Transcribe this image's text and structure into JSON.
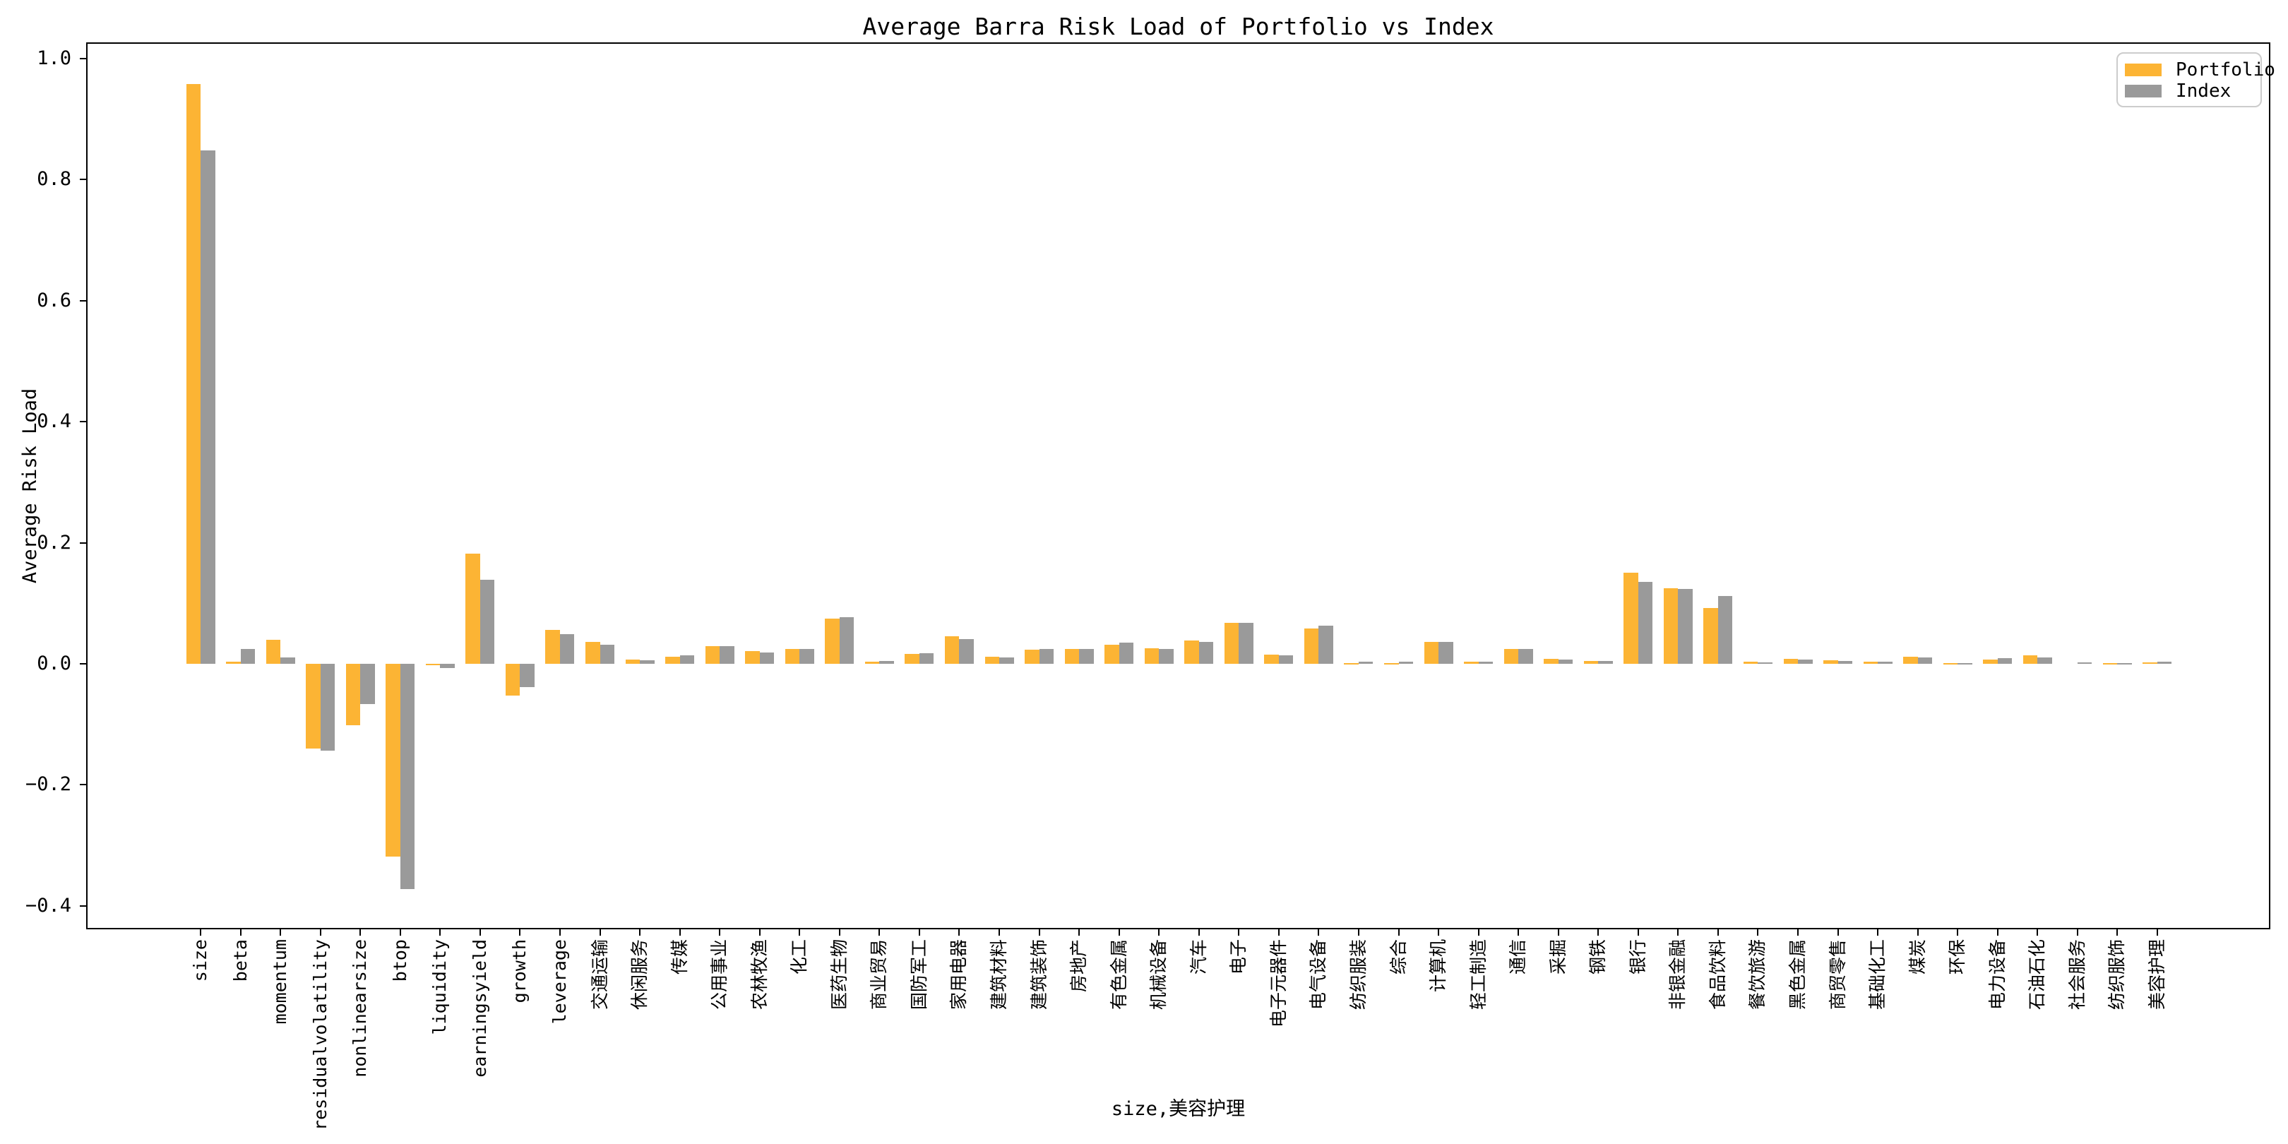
{
  "chart_data": {
    "type": "bar",
    "title": "Average Barra Risk Load of Portfolio vs Index",
    "xlabel": "size,美容护理",
    "ylabel": "Average Risk Load",
    "legend_position": "upper right",
    "grid": false,
    "ylim": [
      -0.439,
      1.027
    ],
    "yticks": [
      1.0,
      0.8,
      0.6,
      0.4,
      0.2,
      0.0,
      -0.2,
      -0.4
    ],
    "categories": [
      "size",
      "beta",
      "momentum",
      "residualvolatility",
      "nonlinearsize",
      "btop",
      "liquidity",
      "earningsyield",
      "growth",
      "leverage",
      "交通运输",
      "休闲服务",
      "传媒",
      "公用事业",
      "农林牧渔",
      "化工",
      "医药生物",
      "商业贸易",
      "国防军工",
      "家用电器",
      "建筑材料",
      "建筑装饰",
      "房地产",
      "有色金属",
      "机械设备",
      "汽车",
      "电子",
      "电子元器件",
      "电气设备",
      "纺织服装",
      "综合",
      "计算机",
      "轻工制造",
      "通信",
      "采掘",
      "钢铁",
      "银行",
      "非银金融",
      "食品饮料",
      "餐饮旅游",
      "黑色金属",
      "商贸零售",
      "基础化工",
      "煤炭",
      "环保",
      "电力设备",
      "石油石化",
      "社会服务",
      "纺织服饰",
      "美容护理"
    ],
    "series": [
      {
        "name": "Portfolio",
        "color": "#FCB434",
        "values": [
          0.958,
          0.004,
          0.04,
          -0.14,
          -0.102,
          -0.318,
          -0.002,
          0.182,
          -0.052,
          0.056,
          0.036,
          0.007,
          0.012,
          0.029,
          0.021,
          0.025,
          0.075,
          0.004,
          0.016,
          0.046,
          0.012,
          0.023,
          0.025,
          0.032,
          0.026,
          0.038,
          0.068,
          0.015,
          0.058,
          0.001,
          0.001,
          0.036,
          0.004,
          0.024,
          0.008,
          0.005,
          0.15,
          0.125,
          0.092,
          0.003,
          0.008,
          0.006,
          0.004,
          0.012,
          0.001,
          0.007,
          0.014,
          0.0,
          0.001,
          0.002
        ]
      },
      {
        "name": "Index",
        "color": "#9A9A9A",
        "values": [
          0.848,
          0.024,
          0.011,
          -0.144,
          -0.067,
          -0.372,
          -0.007,
          0.139,
          -0.039,
          0.049,
          0.032,
          0.006,
          0.014,
          0.029,
          0.019,
          0.024,
          0.077,
          0.005,
          0.017,
          0.041,
          0.01,
          0.024,
          0.025,
          0.035,
          0.024,
          0.036,
          0.068,
          0.014,
          0.063,
          0.003,
          0.003,
          0.036,
          0.004,
          0.024,
          0.007,
          0.005,
          0.135,
          0.124,
          0.112,
          0.002,
          0.007,
          0.005,
          0.004,
          0.01,
          0.001,
          0.009,
          0.011,
          0.002,
          0.001,
          0.004
        ]
      }
    ]
  }
}
